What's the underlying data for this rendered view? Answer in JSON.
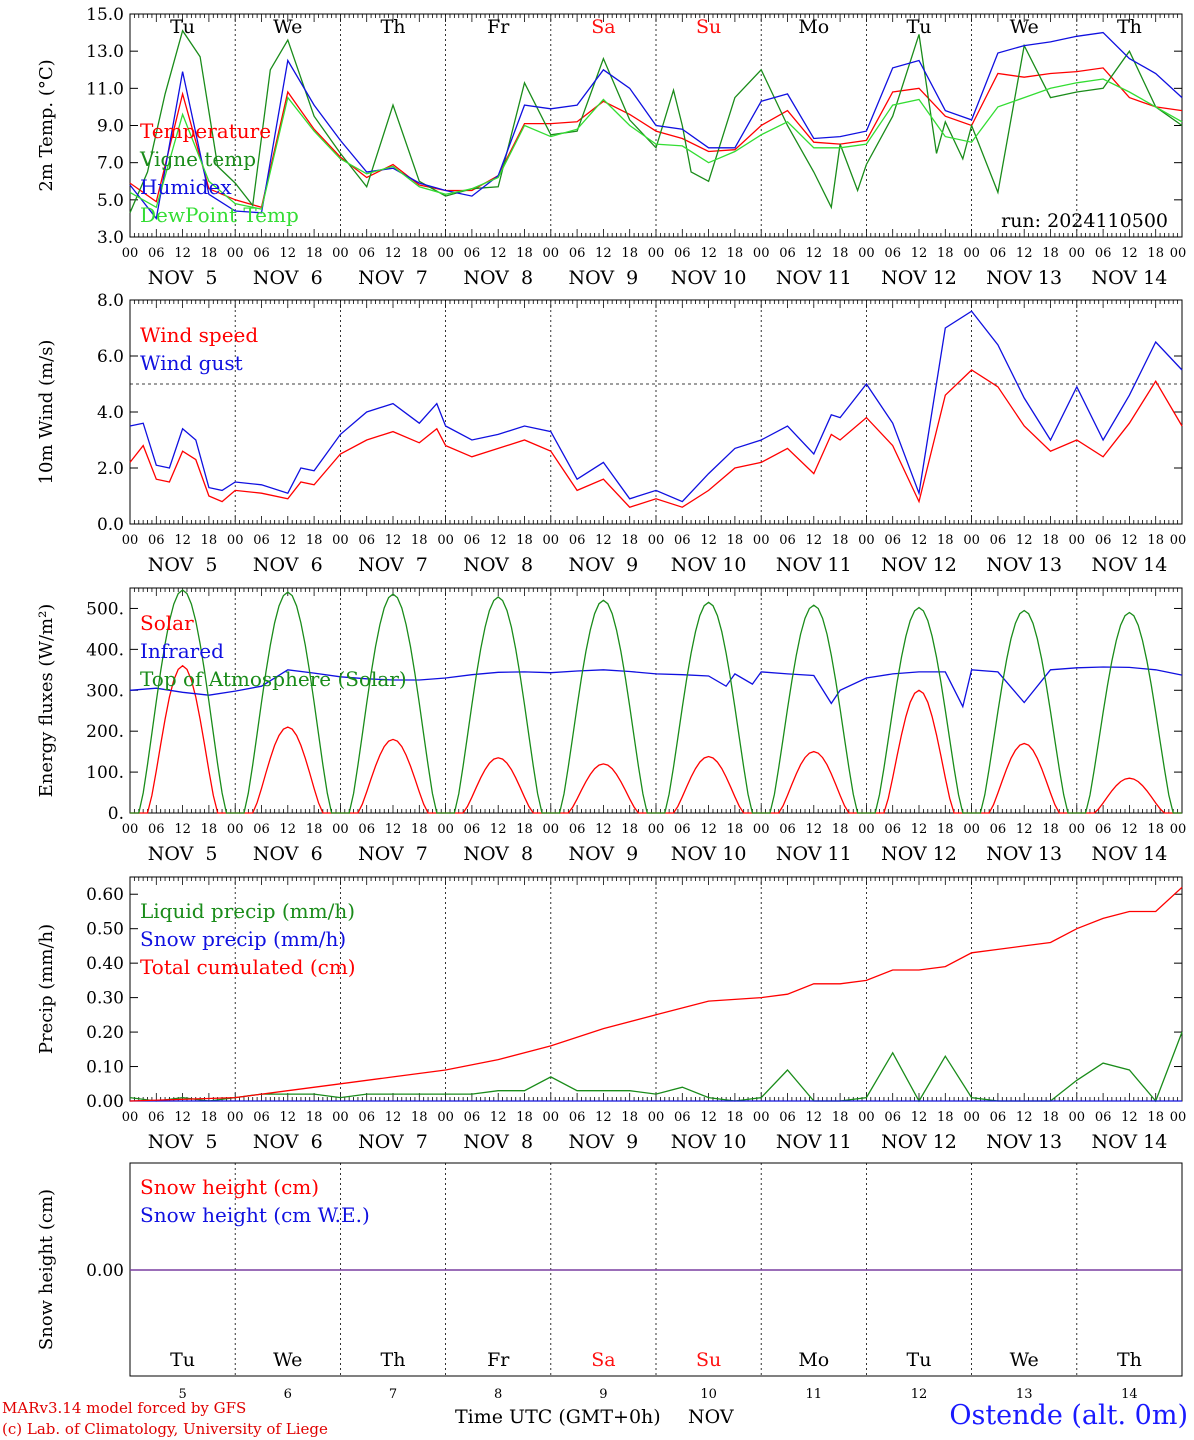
{
  "colors": {
    "red": "#ff0000",
    "darkgreen": "#1a8c1a",
    "blue": "#1010e0",
    "lightgreen": "#33dd33",
    "purple": "#7a3fa0",
    "weekend": "#ff1010"
  },
  "day_names": [
    "Tu",
    "We",
    "Th",
    "Fr",
    "Sa",
    "Su",
    "Mo",
    "Tu",
    "We",
    "Th"
  ],
  "weekend_flags": [
    false,
    false,
    false,
    false,
    true,
    true,
    false,
    false,
    false,
    false
  ],
  "hour_ticks": [
    "00",
    "06",
    "12",
    "18"
  ],
  "final_hour_tick": "00",
  "date_labels": [
    "NOV  5",
    "NOV  6",
    "NOV  7",
    "NOV  8",
    "NOV  9",
    "NOV 10",
    "NOV 11",
    "NOV 12",
    "NOV 13",
    "NOV 14"
  ],
  "bottom_day_numbers": [
    "5",
    "6",
    "7",
    "8",
    "9",
    "10",
    "11",
    "12",
    "13",
    "14"
  ],
  "run_label": "run: 2024110500",
  "footer": {
    "model": "MARv3.14 model forced by GFS",
    "copyright": "(c) Lab. of Climatology, University of Liege",
    "axis_title": "Time UTC (GMT+0h)",
    "month": "NOV",
    "station": "Ostende (alt. 0m)"
  },
  "chart_data": [
    {
      "type": "line",
      "ylabel": "2m Temp. (°C)",
      "ylim": [
        3.0,
        15.0
      ],
      "yticks": [
        "3.0",
        "5.0",
        "7.0",
        "9.0",
        "11.0",
        "13.0",
        "15.0"
      ],
      "x_unit": "hours since NOV 5 00 UTC",
      "series": [
        {
          "name": "Temperature",
          "color": "#ff0000",
          "x": [
            0,
            6,
            12,
            18,
            24,
            30,
            36,
            39,
            42,
            48,
            54,
            60,
            66,
            72,
            78,
            84,
            90,
            96,
            102,
            108,
            114,
            120,
            126,
            132,
            138,
            144,
            150,
            156,
            162,
            168,
            174,
            180,
            186,
            192,
            198,
            204,
            210,
            216,
            222,
            228,
            234,
            240
          ],
          "y": [
            5.9,
            4.9,
            10.7,
            5.6,
            5.0,
            4.6,
            10.8,
            9.8,
            8.8,
            7.3,
            6.2,
            6.9,
            5.8,
            5.5,
            5.5,
            6.3,
            9.1,
            9.1,
            9.2,
            10.3,
            9.6,
            8.7,
            8.3,
            7.6,
            7.7,
            9.0,
            9.8,
            8.1,
            8.0,
            8.2,
            10.8,
            11.0,
            9.5,
            9.0,
            11.8,
            11.6,
            11.8,
            11.9,
            12.1,
            10.5,
            10.0,
            9.8
          ]
        },
        {
          "name": "Vigne temp",
          "color": "#1a8c1a",
          "x": [
            0,
            4,
            8,
            12,
            16,
            20,
            24,
            28,
            32,
            36,
            42,
            48,
            54,
            60,
            66,
            72,
            78,
            84,
            90,
            96,
            102,
            108,
            114,
            120,
            124,
            126,
            128,
            132,
            138,
            144,
            150,
            156,
            160,
            162,
            166,
            168,
            174,
            180,
            184,
            186,
            190,
            192,
            198,
            204,
            210,
            216,
            222,
            228,
            234,
            240
          ],
          "y": [
            4.3,
            6.5,
            10.7,
            14.1,
            12.7,
            6.8,
            5.9,
            4.7,
            12.0,
            13.6,
            9.5,
            7.5,
            5.7,
            10.1,
            6.0,
            5.2,
            5.6,
            5.7,
            11.3,
            8.5,
            8.7,
            12.6,
            9.3,
            7.8,
            10.9,
            9.0,
            6.5,
            6.0,
            10.5,
            12.0,
            9.0,
            6.5,
            4.6,
            8.0,
            5.5,
            6.9,
            9.5,
            13.9,
            7.5,
            9.2,
            7.2,
            9.0,
            5.4,
            13.3,
            10.5,
            10.8,
            11.0,
            13.0,
            10.0,
            9.0
          ]
        },
        {
          "name": "Humidex",
          "color": "#1010e0",
          "x": [
            0,
            6,
            12,
            18,
            24,
            30,
            36,
            42,
            48,
            54,
            60,
            66,
            72,
            78,
            84,
            90,
            96,
            102,
            108,
            114,
            120,
            126,
            132,
            138,
            144,
            150,
            156,
            162,
            168,
            174,
            180,
            186,
            192,
            198,
            204,
            210,
            216,
            222,
            228,
            234,
            240
          ],
          "y": [
            5.8,
            4.0,
            11.9,
            5.3,
            4.4,
            4.3,
            12.5,
            10.1,
            8.2,
            6.5,
            6.7,
            5.9,
            5.5,
            5.2,
            6.3,
            10.1,
            9.9,
            10.1,
            12.0,
            11.0,
            9.0,
            8.8,
            7.8,
            7.8,
            10.3,
            10.7,
            8.3,
            8.4,
            8.7,
            12.1,
            12.5,
            9.8,
            9.3,
            12.9,
            13.3,
            13.5,
            13.8,
            14.0,
            12.6,
            11.8,
            10.5
          ]
        },
        {
          "name": "DewPoint Temp",
          "color": "#33dd33",
          "x": [
            0,
            6,
            12,
            18,
            24,
            30,
            36,
            42,
            48,
            54,
            60,
            66,
            72,
            78,
            84,
            90,
            96,
            102,
            108,
            114,
            120,
            126,
            132,
            138,
            144,
            150,
            156,
            162,
            168,
            174,
            180,
            186,
            192,
            198,
            204,
            210,
            216,
            222,
            228,
            234,
            240
          ],
          "y": [
            5.4,
            4.6,
            9.6,
            6.0,
            4.8,
            4.5,
            10.5,
            8.7,
            7.2,
            6.4,
            6.8,
            5.7,
            5.3,
            5.6,
            6.2,
            9.0,
            8.4,
            8.8,
            10.4,
            9.0,
            8.0,
            7.9,
            7.0,
            7.6,
            8.5,
            9.2,
            7.8,
            7.8,
            8.0,
            10.1,
            10.4,
            8.4,
            8.1,
            10.0,
            10.5,
            11.0,
            11.3,
            11.5,
            10.8,
            10.0,
            9.2
          ]
        }
      ]
    },
    {
      "type": "line",
      "ylabel": "10m Wind (m/s)",
      "ylim": [
        0.0,
        8.0
      ],
      "yticks": [
        "0.0",
        "2.0",
        "4.0",
        "6.0",
        "8.0"
      ],
      "reference_line": 5.0,
      "series": [
        {
          "name": "Wind speed",
          "color": "#ff0000",
          "x": [
            0,
            3,
            6,
            9,
            12,
            15,
            18,
            21,
            24,
            30,
            36,
            39,
            42,
            48,
            54,
            60,
            66,
            70,
            72,
            78,
            84,
            90,
            96,
            102,
            108,
            114,
            120,
            126,
            132,
            138,
            144,
            150,
            156,
            160,
            162,
            168,
            174,
            180,
            186,
            192,
            198,
            204,
            210,
            216,
            222,
            228,
            234,
            240
          ],
          "y": [
            2.2,
            2.8,
            1.6,
            1.5,
            2.6,
            2.3,
            1.0,
            0.8,
            1.2,
            1.1,
            0.9,
            1.5,
            1.4,
            2.5,
            3.0,
            3.3,
            2.9,
            3.4,
            2.8,
            2.4,
            2.7,
            3.0,
            2.6,
            1.2,
            1.6,
            0.6,
            0.9,
            0.6,
            1.2,
            2.0,
            2.2,
            2.7,
            1.8,
            3.2,
            3.0,
            3.8,
            2.8,
            0.8,
            4.6,
            5.5,
            4.9,
            3.5,
            2.6,
            3.0,
            2.4,
            3.6,
            5.1,
            3.5
          ]
        },
        {
          "name": "Wind gust",
          "color": "#1010e0",
          "x": [
            0,
            3,
            6,
            9,
            12,
            15,
            18,
            21,
            24,
            30,
            36,
            39,
            42,
            48,
            54,
            60,
            66,
            70,
            72,
            78,
            84,
            90,
            96,
            102,
            108,
            114,
            120,
            126,
            132,
            138,
            144,
            150,
            156,
            160,
            162,
            168,
            174,
            180,
            186,
            192,
            198,
            204,
            210,
            216,
            222,
            228,
            234,
            240
          ],
          "y": [
            3.5,
            3.6,
            2.1,
            2.0,
            3.4,
            3.0,
            1.3,
            1.2,
            1.5,
            1.4,
            1.1,
            2.0,
            1.9,
            3.2,
            4.0,
            4.3,
            3.6,
            4.3,
            3.5,
            3.0,
            3.2,
            3.5,
            3.3,
            1.6,
            2.2,
            0.9,
            1.2,
            0.8,
            1.8,
            2.7,
            3.0,
            3.5,
            2.5,
            3.9,
            3.8,
            5.0,
            3.6,
            1.1,
            7.0,
            7.6,
            6.4,
            4.5,
            3.0,
            4.9,
            3.0,
            4.6,
            6.5,
            5.5
          ]
        }
      ]
    },
    {
      "type": "line",
      "ylabel": "Energy fluxes (W/m²)",
      "ylim": [
        0.0,
        550.0
      ],
      "yticks": [
        "0.",
        "100.",
        "200.",
        "300.",
        "400.",
        "500."
      ],
      "series": [
        {
          "name": "Solar",
          "color": "#ff0000",
          "x_pattern": "diurnal",
          "daily_peaks": [
            360,
            210,
            180,
            135,
            120,
            138,
            150,
            300,
            170,
            85
          ]
        },
        {
          "name": "Infrared",
          "color": "#1010e0",
          "x": [
            0,
            6,
            12,
            18,
            24,
            30,
            36,
            42,
            48,
            54,
            60,
            66,
            72,
            78,
            84,
            90,
            96,
            102,
            108,
            114,
            120,
            126,
            132,
            136,
            138,
            142,
            144,
            150,
            156,
            160,
            162,
            168,
            174,
            180,
            186,
            190,
            192,
            198,
            204,
            210,
            216,
            222,
            228,
            234,
            240
          ],
          "y": [
            300,
            305,
            295,
            288,
            298,
            310,
            350,
            342,
            333,
            328,
            325,
            325,
            330,
            338,
            344,
            345,
            343,
            347,
            350,
            346,
            340,
            338,
            335,
            310,
            340,
            315,
            345,
            340,
            336,
            268,
            300,
            330,
            340,
            345,
            345,
            260,
            350,
            345,
            270,
            350,
            355,
            357,
            356,
            350,
            337
          ]
        },
        {
          "name": "Top of Atmosphere (Solar)",
          "color": "#1a8c1a",
          "x_pattern": "diurnal",
          "daily_peaks": [
            545,
            540,
            535,
            528,
            520,
            515,
            508,
            502,
            495,
            490
          ]
        }
      ]
    },
    {
      "type": "line",
      "ylabel": "Precip (mm/h)",
      "ylim": [
        0.0,
        0.65
      ],
      "yticks": [
        "0.00",
        "0.10",
        "0.20",
        "0.30",
        "0.40",
        "0.50",
        "0.60"
      ],
      "series": [
        {
          "name": "Liquid precip (mm/h)",
          "color": "#1a8c1a",
          "x": [
            0,
            6,
            12,
            18,
            24,
            30,
            36,
            42,
            48,
            54,
            60,
            66,
            72,
            78,
            84,
            90,
            96,
            102,
            108,
            114,
            120,
            126,
            132,
            138,
            144,
            150,
            156,
            162,
            168,
            174,
            180,
            186,
            192,
            198,
            204,
            210,
            216,
            222,
            228,
            234,
            240
          ],
          "y": [
            0.01,
            0.0,
            0.01,
            0.0,
            0.01,
            0.02,
            0.02,
            0.02,
            0.01,
            0.02,
            0.02,
            0.02,
            0.02,
            0.02,
            0.03,
            0.03,
            0.07,
            0.03,
            0.03,
            0.03,
            0.02,
            0.04,
            0.01,
            0.0,
            0.01,
            0.09,
            0.0,
            0.0,
            0.01,
            0.14,
            0.0,
            0.13,
            0.01,
            0.0,
            0.0,
            0.0,
            0.06,
            0.11,
            0.09,
            0.0,
            0.2
          ]
        },
        {
          "name": "Snow precip (mm/h)",
          "color": "#1010e0",
          "x": [
            0,
            240
          ],
          "y": [
            0.0,
            0.0
          ]
        },
        {
          "name": "Total cumulated (cm)",
          "color": "#ff0000",
          "x": [
            0,
            24,
            36,
            48,
            60,
            72,
            84,
            96,
            108,
            120,
            132,
            144,
            150,
            156,
            162,
            168,
            174,
            180,
            186,
            192,
            198,
            204,
            210,
            216,
            222,
            228,
            234,
            240
          ],
          "y": [
            0.0,
            0.01,
            0.03,
            0.05,
            0.07,
            0.09,
            0.12,
            0.16,
            0.21,
            0.25,
            0.29,
            0.3,
            0.31,
            0.34,
            0.34,
            0.35,
            0.38,
            0.38,
            0.39,
            0.43,
            0.44,
            0.45,
            0.46,
            0.5,
            0.53,
            0.55,
            0.55,
            0.62
          ]
        }
      ]
    },
    {
      "type": "line",
      "ylabel": "Snow height (cm)",
      "yticks": [
        "0.00"
      ],
      "series": [
        {
          "name": "Snow height (cm)",
          "color": "#ff0000",
          "x": [
            0,
            240
          ],
          "y": [
            0.0,
            0.0
          ]
        },
        {
          "name": "Snow height (cm W.E.)",
          "color": "#1010e0",
          "x": [
            0,
            240
          ],
          "y": [
            0.0,
            0.0
          ]
        }
      ]
    }
  ]
}
